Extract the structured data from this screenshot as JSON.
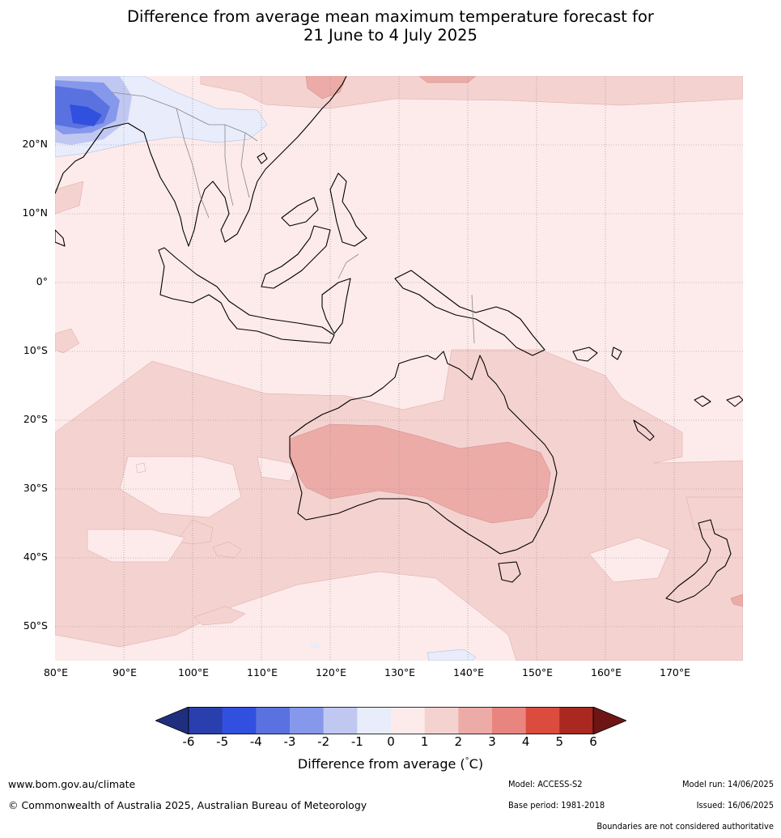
{
  "title_line1": "Difference from average mean maximum temperature forecast for",
  "title_line2": "21 June to 4 July 2025",
  "lat_labels": [
    "20°N",
    "10°N",
    "0°",
    "10°S",
    "20°S",
    "30°S",
    "40°S",
    "50°S"
  ],
  "lon_labels": [
    "80°E",
    "90°E",
    "100°E",
    "110°E",
    "120°E",
    "130°E",
    "140°E",
    "150°E",
    "160°E",
    "170°E"
  ],
  "colorbar": {
    "ticks": [
      "-6",
      "-5",
      "-4",
      "-3",
      "-2",
      "-1",
      "0",
      "1",
      "2",
      "3",
      "4",
      "5",
      "6"
    ],
    "colors": [
      "#1f2f7e",
      "#2a3fae",
      "#3150e0",
      "#5a72e0",
      "#8698eb",
      "#c0c8f2",
      "#e8ecfb",
      "#fcebea",
      "#f4d2d0",
      "#edaba8",
      "#e8857e",
      "#db4b3e",
      "#a9281f",
      "#6e1616"
    ],
    "label": "Difference from average (",
    "label_deg": "°",
    "label_unit": "C)"
  },
  "footer": {
    "website": "www.bom.gov.au/climate",
    "copyright": "© Commonwealth of Australia 2025, Australian Bureau of Meteorology",
    "model": "Model: ACCESS-S2",
    "base_period": "Base period: 1981-2018",
    "model_run": "Model run: 14/06/2025",
    "issued": "Issued: 16/06/2025",
    "disclaimer": "Boundaries are not considered authoritative"
  }
}
